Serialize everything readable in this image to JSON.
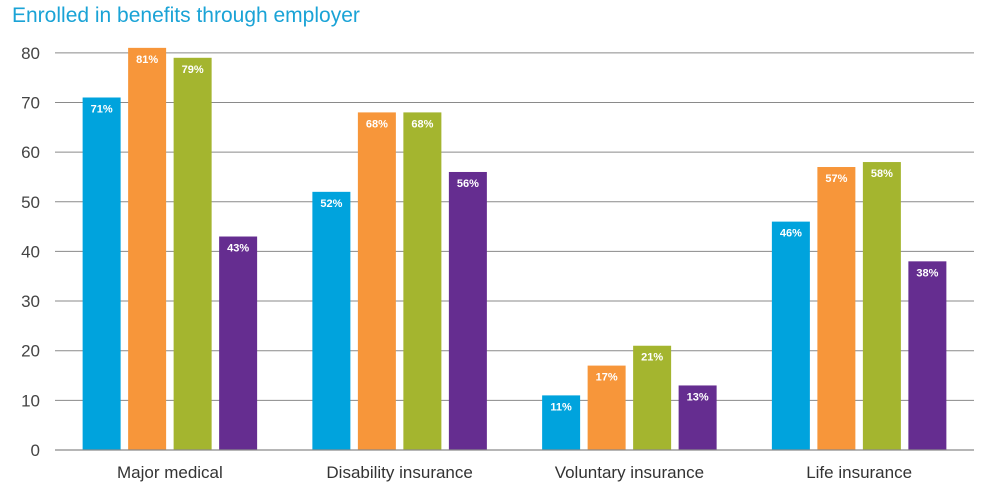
{
  "chart_data": {
    "type": "bar",
    "title": "Enrolled in benefits through employer",
    "xlabel": "",
    "ylabel": "",
    "ylim": [
      0,
      85
    ],
    "yticks": [
      0,
      10,
      20,
      30,
      40,
      50,
      60,
      70,
      80
    ],
    "grid": true,
    "categories": [
      "Major medical",
      "Disability insurance",
      "Voluntary insurance",
      "Life insurance"
    ],
    "series": [
      {
        "color": "#00a3dd",
        "values": [
          71,
          52,
          11,
          46
        ],
        "labels": [
          "71%",
          "52%",
          "11%",
          "46%"
        ]
      },
      {
        "color": "#f7963a",
        "values": [
          81,
          68,
          17,
          57
        ],
        "labels": [
          "81%",
          "68%",
          "17%",
          "57%"
        ]
      },
      {
        "color": "#a4b52f",
        "values": [
          79,
          68,
          21,
          58
        ],
        "labels": [
          "79%",
          "68%",
          "21%",
          "58%"
        ]
      },
      {
        "color": "#652d90",
        "values": [
          43,
          56,
          13,
          38
        ],
        "labels": [
          "43%",
          "56%",
          "13%",
          "38%"
        ]
      }
    ]
  }
}
